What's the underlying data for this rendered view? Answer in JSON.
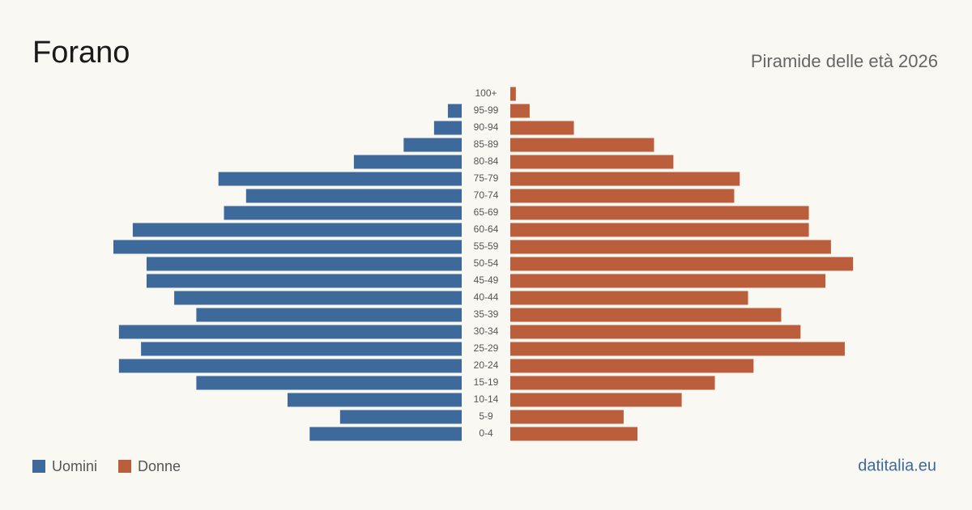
{
  "chart_data": {
    "type": "pyramid",
    "title": "Forano",
    "subtitle": "Piramide delle età 2026",
    "source": "datitalia.eu",
    "categories": [
      "100+",
      "95-99",
      "90-94",
      "85-89",
      "80-84",
      "75-79",
      "70-74",
      "65-69",
      "60-64",
      "55-59",
      "50-54",
      "45-49",
      "40-44",
      "35-39",
      "30-34",
      "25-29",
      "20-24",
      "15-19",
      "10-14",
      "5-9",
      "0-4"
    ],
    "series": [
      {
        "name": "Uomini",
        "color": "#3d6a9b",
        "values": [
          0,
          5,
          10,
          21,
          39,
          88,
          78,
          86,
          119,
          126,
          114,
          114,
          104,
          96,
          124,
          116,
          124,
          96,
          63,
          44,
          55
        ]
      },
      {
        "name": "Donne",
        "color": "#bb5e3c",
        "values": [
          2,
          7,
          23,
          52,
          59,
          83,
          81,
          108,
          108,
          116,
          124,
          114,
          86,
          98,
          105,
          121,
          88,
          74,
          62,
          41,
          46
        ]
      }
    ]
  }
}
